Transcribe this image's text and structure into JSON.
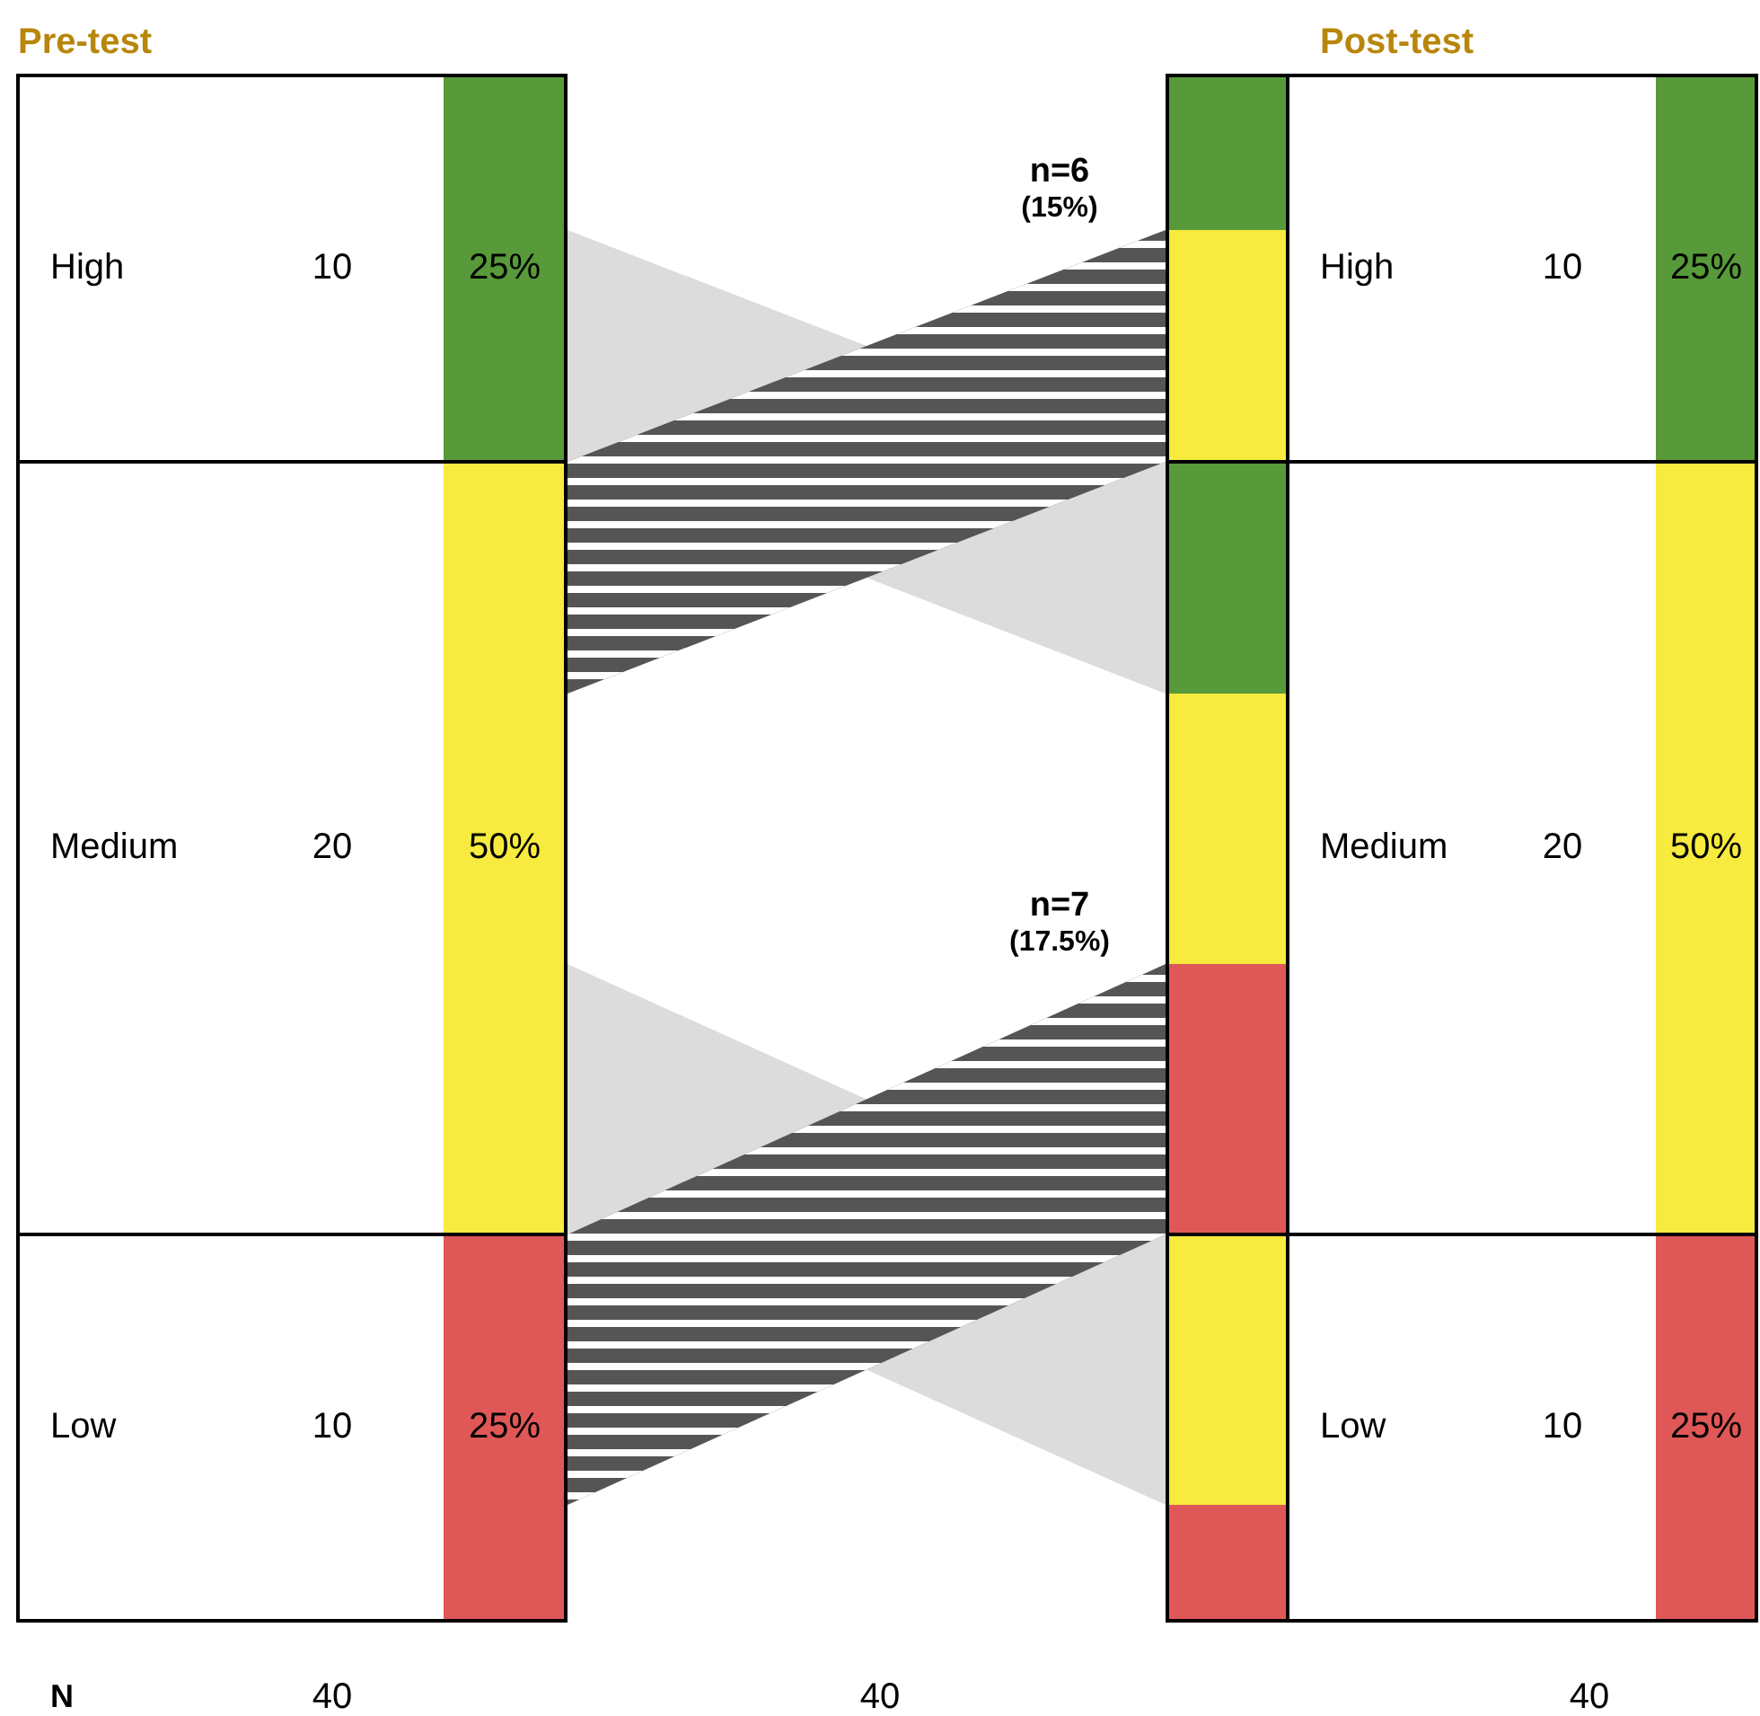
{
  "chart_data": {
    "type": "other",
    "categories": [
      "High",
      "Medium",
      "Low"
    ],
    "series": [
      {
        "name": "Pre-test",
        "values": [
          10,
          20,
          10
        ]
      },
      {
        "values": [
          25,
          50,
          25
        ],
        "value_labels": [
          "25%",
          "50%",
          "25%"
        ],
        "colors": [
          "#58993a",
          "#f6eb3e",
          "#e05757"
        ]
      },
      {
        "name": "Post-test",
        "values": [
          10,
          20,
          10
        ]
      },
      {
        "values": [
          25,
          50,
          25
        ],
        "value_labels": [
          "25%",
          "50%",
          "25%"
        ],
        "colors": [
          "#58993a",
          "#f6eb3e",
          "#e05757"
        ]
      },
      {
        "values": [
          6,
          7,
          null
        ],
        "value_labels": [
          "n=6\n(15%)",
          "n=7\n(17.5%)",
          null
        ],
        "color": "#555555"
      }
    ],
    "data_labels": true,
    "totals": [
      "40",
      "40",
      "40"
    ],
    "annotations": [
      "N"
    ]
  }
}
